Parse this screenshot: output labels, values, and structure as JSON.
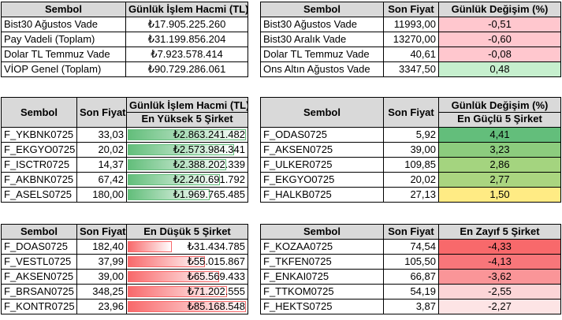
{
  "volume_summary": {
    "headers": [
      "Sembol",
      "Günlük İşlem Hacmi (TL)"
    ],
    "rows": [
      [
        "Bist30 Ağustos Vade",
        "₺17.905.225.260"
      ],
      [
        "Pay Vadeli (Toplam)",
        "₺31.199.856.204"
      ],
      [
        "Dolar TL Temmuz Vade",
        "₺7.923.578.414"
      ],
      [
        "VİOP Genel (Toplam)",
        "₺90.729.286.061"
      ]
    ]
  },
  "price_summary": {
    "headers": [
      "Sembol",
      "Son Fiyat",
      "Günlük Değişim (%)"
    ],
    "rows": [
      {
        "symbol": "Bist30 Ağustos Vade",
        "price": "11993,00",
        "change": "-0,51",
        "color": "#ffc7ce"
      },
      {
        "symbol": "Bist30 Aralık Vade",
        "price": "13270,00",
        "change": "-0,60",
        "color": "#ffc7ce"
      },
      {
        "symbol": "Dolar TL Temmuz Vade",
        "price": "40,61",
        "change": "-0,08",
        "color": "#ffc7ce"
      },
      {
        "symbol": "Ons Altın Ağustos Vade",
        "price": "3347,50",
        "change": "0,48",
        "color": "#c6efce"
      }
    ]
  },
  "top_volume": {
    "headers": [
      "Sembol",
      "Son Fiyat",
      "Günlük İşlem Hacmi (TL)"
    ],
    "subheader": "En Yüksek 5 Şirket",
    "rows": [
      {
        "symbol": "F_YKBNK0725",
        "price": "33,03",
        "volume": "₺2.863.241.482",
        "fill": 1.0
      },
      {
        "symbol": "F_EKGYO0725",
        "price": "20,02",
        "volume": "₺2.573.984.341",
        "fill": 0.9
      },
      {
        "symbol": "F_ISCTR0725",
        "price": "14,37",
        "volume": "₺2.388.202.339",
        "fill": 0.83
      },
      {
        "symbol": "F_AKBNK0725",
        "price": "67,42",
        "volume": "₺2.240.691.792",
        "fill": 0.78
      },
      {
        "symbol": "F_ASELS0725",
        "price": "180,00",
        "volume": "₺1.969.765.485",
        "fill": 0.69
      }
    ]
  },
  "top_gainers": {
    "headers": [
      "Sembol",
      "Son Fiyat",
      "Günlük Değişim (%)"
    ],
    "subheader": "En Güçlü 5 Şirket",
    "rows": [
      {
        "symbol": "F_ODAS0725",
        "price": "5,92",
        "change": "4,41",
        "color": "#63be7b"
      },
      {
        "symbol": "F_AKSEN0725",
        "price": "39,00",
        "change": "3,23",
        "color": "#8ccc7e"
      },
      {
        "symbol": "F_ULKER0725",
        "price": "109,85",
        "change": "2,86",
        "color": "#a4d47f"
      },
      {
        "symbol": "F_EKGYO0725",
        "price": "20,02",
        "change": "2,77",
        "color": "#aad580"
      },
      {
        "symbol": "F_HALKB0725",
        "price": "27,13",
        "change": "1,50",
        "color": "#ffeb84"
      }
    ]
  },
  "bottom_volume": {
    "headers": [
      "Sembol",
      "Son Fiyat",
      "En Düşük 5 Şirket"
    ],
    "rows": [
      {
        "symbol": "F_DOAS0725",
        "price": "182,40",
        "volume": "₺31.434.785",
        "fill": 0.37
      },
      {
        "symbol": "F_VESTL0725",
        "price": "37,99",
        "volume": "₺55.015.867",
        "fill": 0.65
      },
      {
        "symbol": "F_AKSEN0725",
        "price": "39,00",
        "volume": "₺65.569.433",
        "fill": 0.77
      },
      {
        "symbol": "F_BRSAN0725",
        "price": "348,25",
        "volume": "₺71.202.555",
        "fill": 0.84
      },
      {
        "symbol": "F_KONTR0725",
        "price": "23,96",
        "volume": "₺85.168.548",
        "fill": 1.0
      }
    ]
  },
  "top_losers": {
    "headers": [
      "Sembol",
      "Son Fiyat",
      "En Zayıf 5 Şirket"
    ],
    "rows": [
      {
        "symbol": "F_KOZAA0725",
        "price": "74,54",
        "change": "-4,33",
        "color": "#f8696b"
      },
      {
        "symbol": "F_TKFEN0725",
        "price": "105,50",
        "change": "-4,13",
        "color": "#f8767a"
      },
      {
        "symbol": "F_ENKAI0725",
        "price": "66,87",
        "change": "-3,62",
        "color": "#fa9598"
      },
      {
        "symbol": "F_TTKOM0725",
        "price": "54,19",
        "change": "-2,55",
        "color": "#fcd5d7"
      },
      {
        "symbol": "F_HEKTS0725",
        "price": "3,87",
        "change": "-2,27",
        "color": "#fde4e5"
      }
    ]
  }
}
